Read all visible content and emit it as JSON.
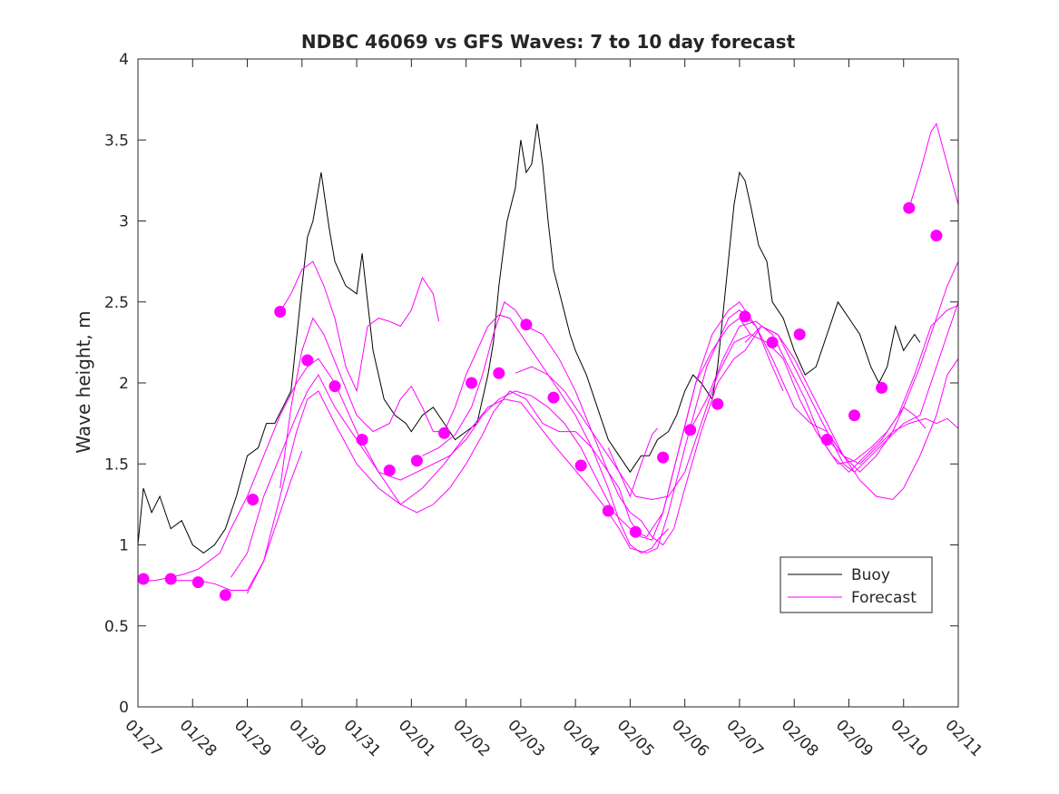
{
  "chart_data": {
    "type": "line",
    "title": "NDBC 46069 vs GFS Waves: 7 to 10 day forecast",
    "xlabel": "",
    "ylabel": "Wave height, m",
    "xlim": [
      0,
      15
    ],
    "ylim": [
      0,
      4
    ],
    "x_ticks": [
      0,
      1,
      2,
      3,
      4,
      5,
      6,
      7,
      8,
      9,
      10,
      11,
      12,
      13,
      14,
      15
    ],
    "x_tick_labels": [
      "01/27",
      "01/28",
      "01/29",
      "01/30",
      "01/31",
      "02/01",
      "02/02",
      "02/03",
      "02/04",
      "02/05",
      "02/06",
      "02/07",
      "02/08",
      "02/09",
      "02/10",
      "02/11"
    ],
    "y_ticks": [
      0,
      0.5,
      1,
      1.5,
      2,
      2.5,
      3,
      3.5,
      4
    ],
    "y_tick_labels": [
      "0",
      "0.5",
      "1",
      "1.5",
      "2",
      "2.5",
      "3",
      "3.5",
      "4"
    ],
    "legend": {
      "location": "bottom-right",
      "entries": [
        {
          "label": "Buoy",
          "color": "#000000"
        },
        {
          "label": "Forecast",
          "color": "#ff00ff"
        }
      ]
    },
    "colors": {
      "buoy": "#000000",
      "forecast": "#ff00ff",
      "axis": "#262626"
    },
    "buoy": {
      "name": "Buoy",
      "x": [
        0,
        0.1,
        0.25,
        0.4,
        0.6,
        0.8,
        1.0,
        1.2,
        1.4,
        1.6,
        1.8,
        2.0,
        2.2,
        2.35,
        2.5,
        2.65,
        2.8,
        3.0,
        3.1,
        3.2,
        3.35,
        3.5,
        3.6,
        3.8,
        4.0,
        4.1,
        4.3,
        4.5,
        4.7,
        4.9,
        5.0,
        5.2,
        5.4,
        5.6,
        5.8,
        6.0,
        6.2,
        6.4,
        6.5,
        6.6,
        6.75,
        6.9,
        7.0,
        7.1,
        7.2,
        7.3,
        7.4,
        7.5,
        7.6,
        7.75,
        7.9,
        8.0,
        8.2,
        8.4,
        8.6,
        8.8,
        8.9,
        9.0,
        9.1,
        9.2,
        9.35,
        9.5,
        9.7,
        9.85,
        10.0,
        10.15,
        10.3,
        10.5,
        10.6,
        10.75,
        10.9,
        11.0,
        11.1,
        11.2,
        11.35,
        11.5,
        11.6,
        11.8,
        12.0,
        12.2,
        12.4,
        12.6,
        12.8,
        13.0,
        13.2,
        13.4,
        13.55,
        13.7,
        13.85,
        14.0,
        14.2,
        14.3
      ],
      "y": [
        1.0,
        1.35,
        1.2,
        1.3,
        1.1,
        1.15,
        1.0,
        0.95,
        1.0,
        1.1,
        1.3,
        1.55,
        1.6,
        1.75,
        1.75,
        1.85,
        1.95,
        2.6,
        2.9,
        3.0,
        3.3,
        2.95,
        2.75,
        2.6,
        2.55,
        2.8,
        2.2,
        1.9,
        1.8,
        1.75,
        1.7,
        1.8,
        1.85,
        1.75,
        1.65,
        1.7,
        1.75,
        2.05,
        2.25,
        2.6,
        3.0,
        3.2,
        3.5,
        3.3,
        3.35,
        3.6,
        3.35,
        3.0,
        2.7,
        2.5,
        2.3,
        2.2,
        2.05,
        1.85,
        1.65,
        1.55,
        1.5,
        1.45,
        1.5,
        1.55,
        1.55,
        1.65,
        1.7,
        1.8,
        1.95,
        2.05,
        2.0,
        1.9,
        2.1,
        2.6,
        3.1,
        3.3,
        3.25,
        3.1,
        2.85,
        2.75,
        2.5,
        2.4,
        2.2,
        2.05,
        2.1,
        2.3,
        2.5,
        2.4,
        2.3,
        2.1,
        2.0,
        2.1,
        2.35,
        2.2,
        2.3,
        2.25
      ]
    },
    "forecast": [
      {
        "name": "Forecast",
        "x": [
          0.0,
          0.3,
          0.6,
          0.85,
          1.1,
          1.3,
          1.5,
          1.7,
          2.0,
          2.3,
          2.6,
          2.9,
          3.1,
          3.3,
          3.6,
          4.0,
          4.4,
          4.8,
          5.1,
          5.4,
          5.7,
          6.0,
          6.3,
          6.5,
          6.8,
          7.1,
          7.4,
          7.7,
          8.0,
          8.3,
          8.6,
          8.8,
          9.0,
          9.2,
          9.4,
          9.5,
          9.7
        ],
        "y": [
          0.78,
          0.78,
          0.8,
          0.82,
          0.85,
          0.9,
          0.95,
          1.1,
          1.3,
          1.55,
          1.8,
          2.0,
          2.1,
          2.15,
          2.0,
          1.7,
          1.45,
          1.25,
          1.2,
          1.25,
          1.35,
          1.5,
          1.68,
          1.82,
          1.95,
          1.9,
          1.75,
          1.7,
          1.7,
          1.6,
          1.35,
          1.15,
          1.0,
          0.95,
          0.98,
          1.03,
          1.1
        ]
      },
      {
        "name": "Forecast",
        "x": [
          0.6,
          0.85,
          1.1,
          1.4,
          1.7,
          2.0,
          2.3,
          2.6,
          2.9,
          3.1,
          3.3,
          3.6,
          4.0,
          4.4,
          4.8,
          5.2,
          5.6,
          6.0,
          6.4,
          6.7,
          7.0,
          7.3,
          7.6,
          7.9,
          8.2,
          8.5,
          8.8,
          9.0,
          9.3,
          9.5,
          9.7,
          10.0,
          10.4,
          10.8,
          11.0,
          11.3,
          11.6,
          11.8
        ],
        "y": [
          0.78,
          0.78,
          0.78,
          0.76,
          0.72,
          0.72,
          0.9,
          1.3,
          1.7,
          1.9,
          1.95,
          1.75,
          1.5,
          1.35,
          1.25,
          1.35,
          1.5,
          1.68,
          1.85,
          1.9,
          1.88,
          1.75,
          1.62,
          1.5,
          1.38,
          1.25,
          1.1,
          0.98,
          0.95,
          0.98,
          1.2,
          1.6,
          2.1,
          2.4,
          2.45,
          2.35,
          2.1,
          1.95
        ]
      },
      {
        "name": "Forecast",
        "x": [
          2.0,
          2.3,
          2.6,
          2.8,
          3.0
        ],
        "y": [
          0.7,
          0.9,
          1.2,
          1.4,
          1.58
        ]
      },
      {
        "name": "Forecast",
        "x": [
          1.7,
          2.0,
          2.3,
          2.6,
          2.9,
          3.1,
          3.3,
          3.6,
          4.0,
          4.4,
          4.8,
          5.1,
          5.4,
          5.7,
          6.0,
          6.3,
          6.6,
          6.9,
          7.2,
          7.5,
          7.8,
          8.1,
          8.4,
          8.7,
          9.0,
          9.3,
          9.6,
          9.9,
          10.2,
          10.5,
          10.8,
          11.0,
          11.2
        ],
        "y": [
          0.8,
          0.95,
          1.3,
          1.55,
          1.8,
          1.95,
          2.05,
          1.85,
          1.65,
          1.45,
          1.4,
          1.45,
          1.5,
          1.55,
          1.65,
          1.8,
          1.9,
          1.95,
          1.92,
          1.85,
          1.75,
          1.6,
          1.4,
          1.2,
          1.1,
          1.05,
          1.2,
          1.6,
          2.0,
          2.2,
          2.35,
          2.4,
          2.3
        ]
      },
      {
        "name": "Forecast",
        "x": [
          2.6,
          2.8,
          3.0,
          3.2,
          3.4,
          3.7,
          4.0,
          4.3,
          4.6,
          4.8,
          5.0,
          5.2,
          5.4,
          5.6,
          5.8,
          6.0,
          6.2,
          6.4,
          6.6,
          6.8,
          7.0,
          7.2,
          7.4,
          7.7,
          8.0,
          8.3,
          8.6,
          8.8,
          9.0,
          9.2,
          9.4,
          9.6,
          9.9,
          10.2,
          10.5,
          10.8,
          11.0,
          11.3,
          11.6,
          11.8,
          12.0,
          12.3,
          12.6,
          12.9,
          13.2,
          13.5,
          13.8,
          14.0,
          14.2,
          14.4
        ],
        "y": [
          1.35,
          1.85,
          2.2,
          2.4,
          2.3,
          2.05,
          1.8,
          1.7,
          1.75,
          1.9,
          1.98,
          1.85,
          1.7,
          1.7,
          1.85,
          2.05,
          2.2,
          2.35,
          2.42,
          2.4,
          2.3,
          2.2,
          2.1,
          1.95,
          1.8,
          1.6,
          1.45,
          1.35,
          1.15,
          1.05,
          1.03,
          1.2,
          1.6,
          2.0,
          2.3,
          2.45,
          2.5,
          2.35,
          2.15,
          2.0,
          1.85,
          1.75,
          1.7,
          1.55,
          1.45,
          1.55,
          1.7,
          1.85,
          1.8,
          1.72
        ]
      },
      {
        "name": "Forecast",
        "x": [
          2.6,
          2.8,
          3.0,
          3.2,
          3.4,
          3.6,
          3.8,
          4.0,
          4.2,
          4.4,
          4.6,
          4.8,
          5.0,
          5.2,
          5.4,
          5.5
        ],
        "y": [
          2.44,
          2.55,
          2.7,
          2.75,
          2.6,
          2.4,
          2.1,
          1.95,
          2.35,
          2.4,
          2.38,
          2.35,
          2.45,
          2.65,
          2.55,
          2.38
        ]
      },
      {
        "name": "Forecast",
        "x": [
          5.2,
          5.5,
          5.8,
          6.1,
          6.3,
          6.5,
          6.7,
          6.9,
          7.1,
          7.4,
          7.7,
          8.0,
          8.3,
          8.6,
          8.8,
          9.0,
          9.2,
          9.4,
          9.6,
          9.8,
          10.0,
          10.3,
          10.6,
          10.9,
          11.1,
          11.4,
          11.7,
          12.0,
          12.3,
          12.6,
          12.9,
          13.1,
          13.4,
          13.7,
          14.0,
          14.3,
          14.6,
          14.9,
          15.0
        ],
        "y": [
          1.55,
          1.6,
          1.68,
          1.85,
          2.05,
          2.3,
          2.5,
          2.45,
          2.35,
          2.3,
          2.15,
          1.95,
          1.7,
          1.45,
          1.3,
          1.2,
          1.15,
          1.05,
          1.0,
          1.1,
          1.35,
          1.7,
          2.0,
          2.15,
          2.2,
          2.35,
          2.3,
          2.1,
          1.9,
          1.7,
          1.5,
          1.45,
          1.55,
          1.65,
          1.75,
          1.8,
          2.1,
          2.4,
          2.5
        ]
      },
      {
        "name": "Forecast",
        "x": [
          6.9,
          7.2,
          7.5,
          7.8,
          8.0,
          8.3,
          8.6,
          8.9,
          9.1,
          9.4,
          9.7,
          10.0,
          10.3,
          10.6,
          10.9,
          11.2,
          11.5,
          11.8,
          12.1,
          12.4,
          12.7,
          13.0,
          13.3,
          13.6,
          13.9,
          14.2,
          14.5,
          14.8,
          15.0
        ],
        "y": [
          2.06,
          2.1,
          2.05,
          1.95,
          1.85,
          1.7,
          1.55,
          1.4,
          1.3,
          1.28,
          1.3,
          1.45,
          1.75,
          2.05,
          2.25,
          2.3,
          2.25,
          2.15,
          1.9,
          1.7,
          1.55,
          1.45,
          1.55,
          1.65,
          1.8,
          2.05,
          2.35,
          2.45,
          2.48
        ]
      },
      {
        "name": "Forecast",
        "x": [
          8.6,
          8.8,
          9.0,
          9.2,
          9.4,
          9.5
        ],
        "y": [
          1.6,
          1.45,
          1.3,
          1.5,
          1.68,
          1.72
        ]
      },
      {
        "name": "Forecast",
        "x": [
          10.1,
          10.4,
          10.7,
          11.0,
          11.3,
          11.6,
          11.9,
          12.2,
          12.5,
          12.8,
          13.1,
          13.4,
          13.7,
          14.0,
          14.3,
          14.6,
          14.8,
          15.0
        ],
        "y": [
          1.71,
          1.9,
          2.15,
          2.35,
          2.38,
          2.3,
          2.1,
          1.9,
          1.65,
          1.5,
          1.52,
          1.6,
          1.7,
          1.85,
          2.1,
          2.4,
          2.6,
          2.75
        ]
      },
      {
        "name": "Forecast",
        "x": [
          11.1,
          11.4,
          11.7,
          12.0,
          12.3,
          12.6,
          12.9,
          13.2,
          13.5,
          13.8,
          14.0,
          14.3,
          14.6,
          14.8,
          15.0
        ],
        "y": [
          2.25,
          2.35,
          2.3,
          2.15,
          1.95,
          1.75,
          1.55,
          1.4,
          1.3,
          1.28,
          1.35,
          1.55,
          1.8,
          2.05,
          2.15
        ]
      },
      {
        "name": "Forecast",
        "x": [
          12.6,
          12.9,
          13.2,
          13.5,
          13.8,
          14.1,
          14.4,
          14.6,
          14.8,
          15.0
        ],
        "y": [
          1.65,
          1.55,
          1.5,
          1.6,
          1.7,
          1.75,
          1.78,
          1.75,
          1.78,
          1.72
        ]
      },
      {
        "name": "Forecast",
        "x": [
          14.1,
          14.3,
          14.5,
          14.6,
          14.8,
          15.0
        ],
        "y": [
          3.08,
          3.3,
          3.55,
          3.6,
          3.35,
          3.1
        ]
      }
    ],
    "forecast_markers": {
      "x": [
        0.1,
        0.6,
        1.1,
        1.6,
        2.1,
        2.6,
        3.1,
        3.6,
        4.1,
        4.6,
        5.1,
        5.6,
        6.1,
        6.6,
        7.1,
        7.6,
        8.1,
        8.6,
        9.1,
        9.6,
        10.1,
        10.6,
        11.1,
        11.6,
        12.1,
        12.6,
        13.1,
        13.6,
        14.1,
        14.6
      ],
      "y": [
        0.79,
        0.79,
        0.77,
        0.69,
        1.28,
        2.44,
        2.14,
        1.98,
        1.65,
        1.46,
        1.52,
        1.69,
        2.0,
        2.06,
        2.36,
        1.91,
        1.49,
        1.21,
        1.08,
        1.54,
        1.71,
        1.87,
        2.41,
        2.25,
        2.3,
        1.65,
        1.8,
        1.97,
        3.08,
        2.91
      ]
    }
  }
}
